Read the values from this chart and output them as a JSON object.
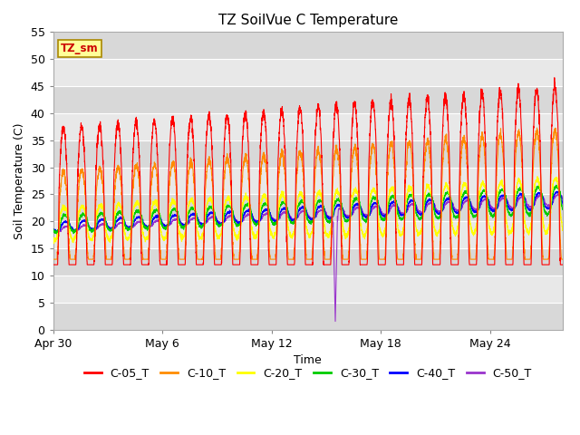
{
  "title": "TZ SoilVue C Temperature",
  "xlabel": "Time",
  "ylabel": "Soil Temperature (C)",
  "ylim": [
    0,
    55
  ],
  "yticks": [
    0,
    5,
    10,
    15,
    20,
    25,
    30,
    35,
    40,
    45,
    50,
    55
  ],
  "num_days": 28,
  "points_per_day": 144,
  "tick_days": [
    0,
    6,
    12,
    18,
    24
  ],
  "tick_labels": [
    "Apr 30",
    "May 6",
    "May 12",
    "May 18",
    "May 24"
  ],
  "series_colors": {
    "C-05_T": "#FF0000",
    "C-10_T": "#FF8C00",
    "C-20_T": "#FFFF00",
    "C-30_T": "#00CC00",
    "C-40_T": "#0000FF",
    "C-50_T": "#9933CC"
  },
  "annotation_label": "TZ_sm",
  "annotation_color": "#FFFF99",
  "annotation_border": "#AA8800",
  "background_color": "#FFFFFF",
  "plot_bg_color": "#E0E0E0",
  "stripe_color": "#CCCCCC",
  "title_fontsize": 11,
  "axis_label_fontsize": 9,
  "tick_label_fontsize": 9,
  "legend_fontsize": 9
}
